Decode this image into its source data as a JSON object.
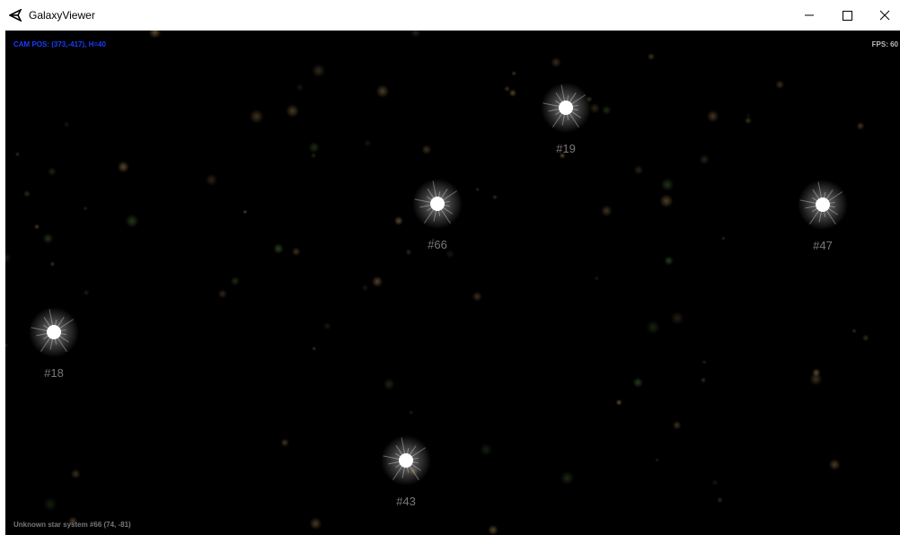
{
  "window": {
    "title": "GalaxyViewer"
  },
  "hud": {
    "camera": "CAM POS: (373,-417), H=40",
    "fps": "FPS: 60",
    "status": "Unknown star system #66 (74, -81)"
  },
  "stars": [
    {
      "label": "#19"
    },
    {
      "label": "#66"
    },
    {
      "label": "#47"
    },
    {
      "label": "#18"
    },
    {
      "label": "#43"
    }
  ]
}
